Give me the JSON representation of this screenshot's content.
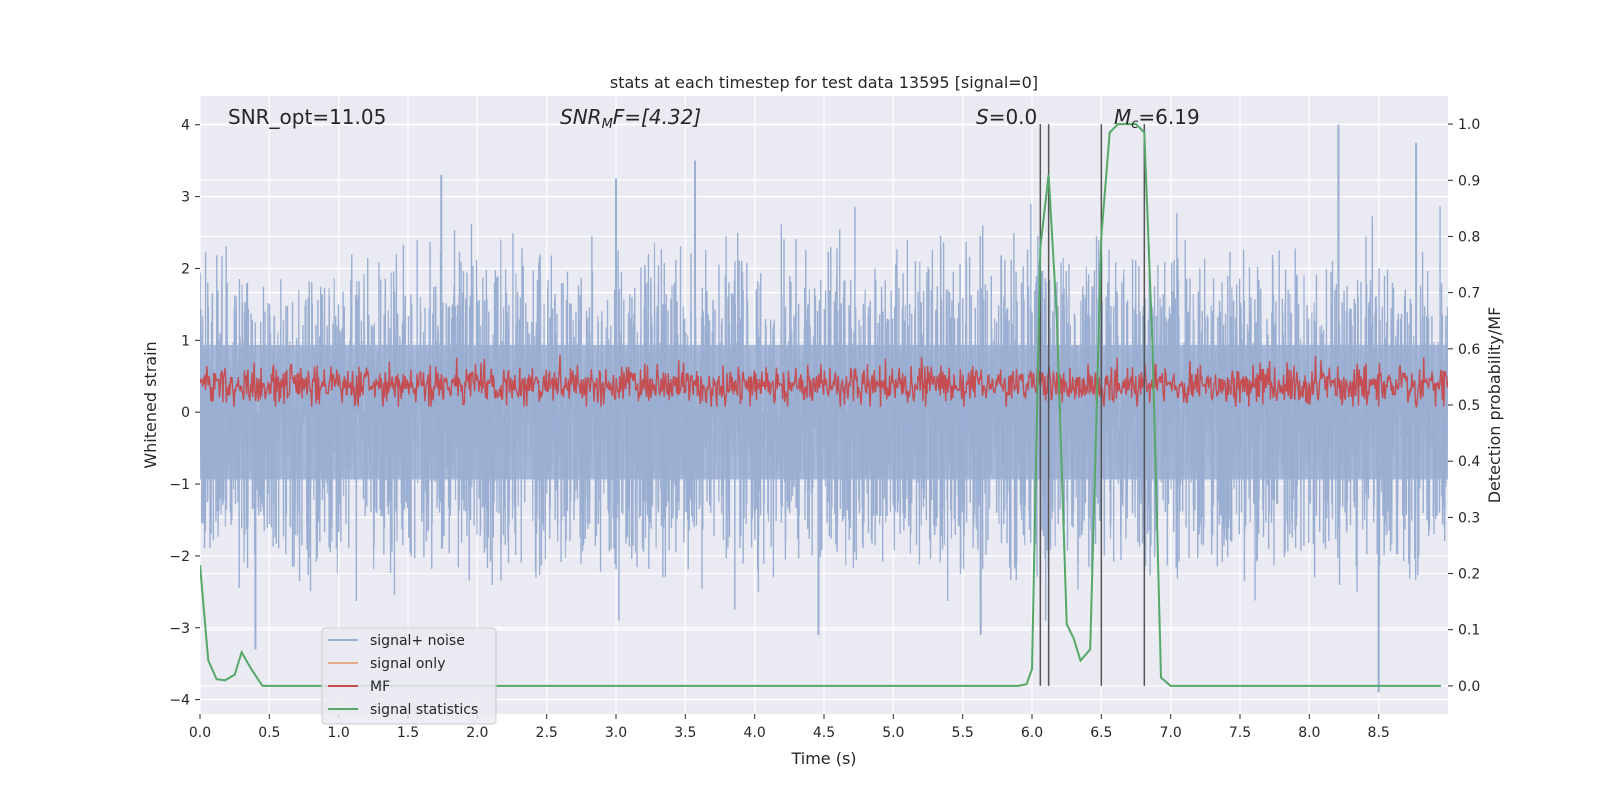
{
  "chart_data": {
    "type": "line",
    "title": "stats at each timestep for test data 13595 [signal=0]",
    "xlabel": "Time (s)",
    "ylabel": "Whitened strain",
    "y2label": "Detection probability/MF",
    "xlim": [
      0.0,
      9.0
    ],
    "ylim": [
      -4.2,
      4.4
    ],
    "y2lim": [
      -0.05,
      1.05
    ],
    "xticks": [
      0.0,
      0.5,
      1.0,
      1.5,
      2.0,
      2.5,
      3.0,
      3.5,
      4.0,
      4.5,
      5.0,
      5.5,
      6.0,
      6.5,
      7.0,
      7.5,
      8.0,
      8.5
    ],
    "xtick_labels": [
      "0.0",
      "0.5",
      "1.0",
      "1.5",
      "2.0",
      "2.5",
      "3.0",
      "3.5",
      "4.0",
      "4.5",
      "5.0",
      "5.5",
      "6.0",
      "6.5",
      "7.0",
      "7.5",
      "8.0",
      "8.5"
    ],
    "yticks": [
      -4,
      -3,
      -2,
      -1,
      0,
      1,
      2,
      3,
      4
    ],
    "ytick_labels": [
      "−4",
      "−3",
      "−2",
      "−1",
      "0",
      "1",
      "2",
      "3",
      "4"
    ],
    "y2ticks": [
      0.0,
      0.1,
      0.2,
      0.3,
      0.4,
      0.5,
      0.6,
      0.7,
      0.8,
      0.9,
      1.0
    ],
    "y2tick_labels": [
      "0.0",
      "0.1",
      "0.2",
      "0.3",
      "0.4",
      "0.5",
      "0.6",
      "0.7",
      "0.8",
      "0.9",
      "1.0"
    ],
    "grid": true,
    "legend_position": "lower-left",
    "annotations": {
      "snr_opt": "SNR_opt=11.05",
      "snr_mf_base": "SNR",
      "snr_mf_sub": "M",
      "snr_mf_rest": "F=[4.32]",
      "s_italic": "S",
      "s_rest": "=0.0",
      "mc_italic": "M",
      "mc_sub": "c",
      "mc_rest": "=6.19"
    },
    "vlines": [
      6.06,
      6.12,
      6.5,
      6.81
    ],
    "series": [
      {
        "name": "signal+ noise",
        "axis": "left",
        "color": "#9aaed2",
        "style": "dense-noise",
        "envelope_typical": [
          -1.7,
          1.7
        ],
        "peaks": [
          {
            "x": 0.4,
            "y": -3.3
          },
          {
            "x": 1.74,
            "y": 3.3
          },
          {
            "x": 3.0,
            "y": 3.25
          },
          {
            "x": 3.57,
            "y": 3.5
          },
          {
            "x": 4.46,
            "y": -3.1
          },
          {
            "x": 5.63,
            "y": -3.1
          },
          {
            "x": 8.21,
            "y": 4.0
          },
          {
            "x": 8.5,
            "y": -3.9
          },
          {
            "x": 8.77,
            "y": 3.75
          }
        ]
      },
      {
        "name": "signal only",
        "axis": "left",
        "color": "#e8a98a",
        "style": "flat",
        "values": []
      },
      {
        "name": "MF",
        "axis": "right",
        "color": "#c44e52",
        "style": "dense-noise",
        "range_typical": [
          0.5,
          0.57
        ],
        "max": 0.61
      },
      {
        "name": "signal statistics",
        "axis": "right",
        "color": "#55a868",
        "x": [
          0.0,
          0.06,
          0.12,
          0.18,
          0.25,
          0.3,
          0.37,
          0.45,
          0.55,
          5.0,
          5.9,
          5.96,
          6.0,
          6.06,
          6.12,
          6.18,
          6.25,
          6.3,
          6.35,
          6.42,
          6.5,
          6.56,
          6.62,
          6.68,
          6.75,
          6.81,
          6.87,
          6.93,
          7.0,
          8.95
        ],
        "y": [
          0.215,
          0.045,
          0.012,
          0.01,
          0.02,
          0.06,
          0.03,
          0.0,
          0.0,
          0.0,
          0.0,
          0.003,
          0.03,
          0.78,
          0.91,
          0.65,
          0.11,
          0.085,
          0.045,
          0.065,
          0.8,
          0.985,
          1.0,
          1.0,
          1.0,
          0.985,
          0.6,
          0.015,
          0.0,
          0.0
        ]
      }
    ]
  }
}
